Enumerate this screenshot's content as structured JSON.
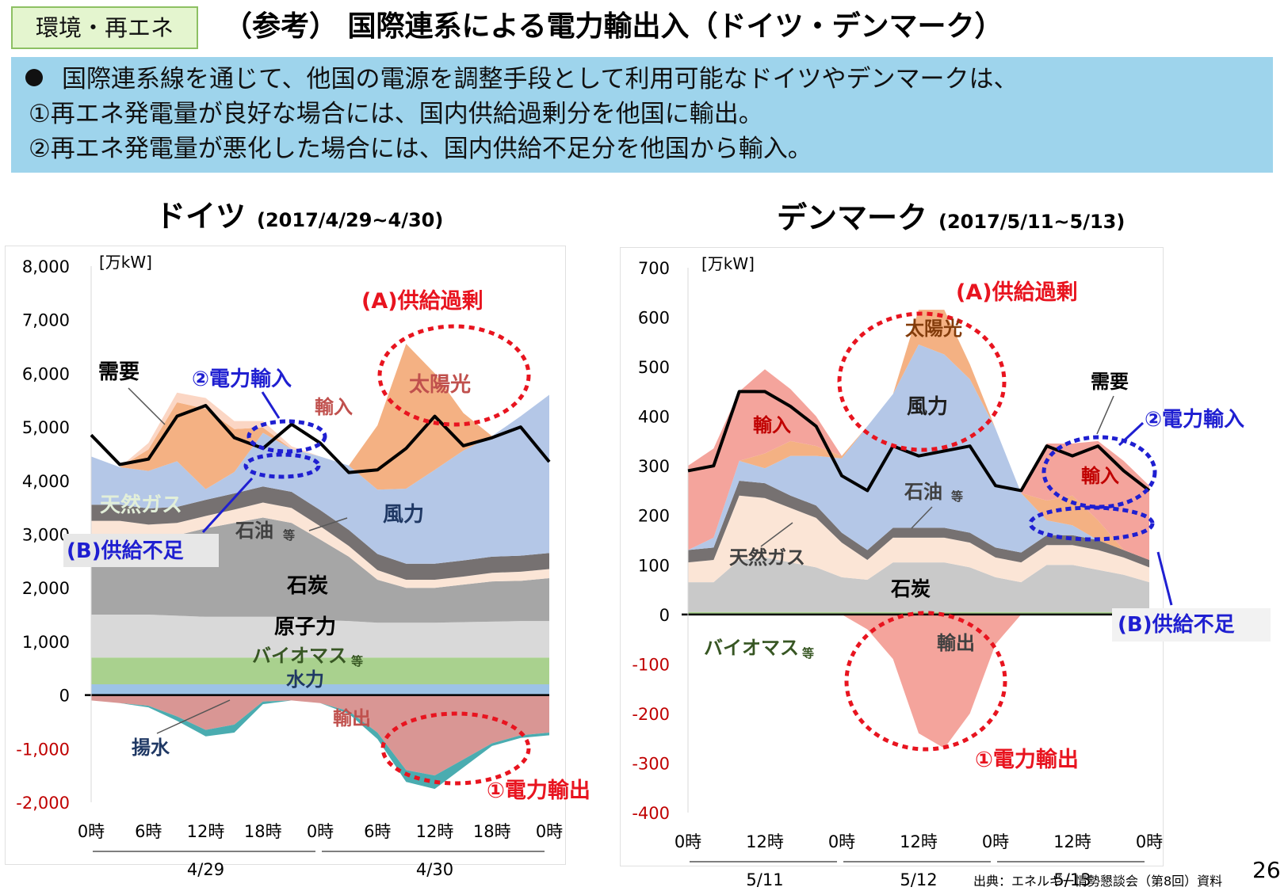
{
  "tag": "環境・再エネ",
  "title": "（参考） 国際連系による電力輸出入（ドイツ・デンマーク）",
  "summary": {
    "line1": "国際連系線を通じて、他国の電源を調整手段として利用可能なドイツやデンマークは、",
    "line2": "①再エネ発電量が良好な場合には、国内供給過剰分を他国に輸出。",
    "line3": "②再エネ発電量が悪化した場合には、国内供給不足分を他国から輸入。"
  },
  "chart_data": [
    {
      "type": "area",
      "title": "ドイツ",
      "subtitle": "(2017/4/29~4/30)",
      "ylabel": "[万kW]",
      "ylim": [
        -2000,
        8000
      ],
      "yticks": [
        "8,000",
        "7,000",
        "6,000",
        "5,000",
        "4,000",
        "3,000",
        "2,000",
        "1,000",
        "0",
        "-1,000",
        "-2,000"
      ],
      "xticks": [
        "0時",
        "6時",
        "12時",
        "18時",
        "0時",
        "6時",
        "12時",
        "18時",
        "0時"
      ],
      "date_labels": [
        "4/29",
        "4/30"
      ],
      "x": [
        0,
        3,
        6,
        9,
        12,
        15,
        18,
        21,
        24,
        27,
        30,
        33,
        36,
        39,
        42,
        45,
        48
      ],
      "series": [
        {
          "name": "水力",
          "color": "#9dc3e6",
          "values": [
            200,
            200,
            200,
            200,
            200,
            200,
            200,
            200,
            200,
            200,
            200,
            200,
            200,
            200,
            200,
            200,
            200
          ]
        },
        {
          "name": "バイオマス等",
          "color": "#a9d18e",
          "values": [
            500,
            500,
            500,
            500,
            500,
            500,
            500,
            500,
            500,
            500,
            500,
            500,
            500,
            500,
            500,
            500,
            500
          ]
        },
        {
          "name": "原子力",
          "color": "#d9d9d9",
          "values": [
            800,
            800,
            800,
            780,
            760,
            760,
            760,
            760,
            700,
            680,
            650,
            650,
            650,
            660,
            670,
            680,
            680
          ]
        },
        {
          "name": "石炭",
          "color": "#a6a6a6",
          "values": [
            1500,
            1500,
            1450,
            1500,
            1650,
            1750,
            1850,
            1750,
            1500,
            1200,
            800,
            650,
            650,
            700,
            750,
            750,
            800
          ]
        },
        {
          "name": "天然ガス",
          "color": "#fbe5d6",
          "values": [
            250,
            250,
            230,
            230,
            230,
            250,
            280,
            280,
            250,
            200,
            180,
            150,
            150,
            150,
            160,
            170,
            170
          ]
        },
        {
          "name": "石油等",
          "color": "#767171",
          "values": [
            300,
            300,
            300,
            300,
            300,
            300,
            300,
            300,
            300,
            300,
            300,
            300,
            300,
            300,
            300,
            300,
            300
          ]
        },
        {
          "name": "風力",
          "color": "#b4c7e7",
          "values": [
            900,
            700,
            700,
            850,
            200,
            400,
            1000,
            800,
            1000,
            1200,
            1200,
            1400,
            1750,
            2050,
            2250,
            2600,
            2950
          ]
        },
        {
          "name": "太陽光",
          "color": "#f4b183",
          "values": [
            0,
            0,
            400,
            1100,
            1500,
            800,
            100,
            0,
            0,
            0,
            1200,
            2700,
            1800,
            700,
            0,
            0,
            0
          ]
        },
        {
          "name": "輸入",
          "color": "#fbd6c4",
          "values": [
            0,
            0,
            120,
            180,
            200,
            150,
            120,
            50,
            0,
            0,
            0,
            0,
            0,
            0,
            0,
            0,
            0
          ]
        },
        {
          "name": "輸出",
          "color": "#d99694",
          "values": [
            -100,
            -150,
            -200,
            -400,
            -650,
            -550,
            -120,
            -100,
            -150,
            -300,
            -700,
            -1400,
            -1500,
            -1200,
            -900,
            -750,
            -700
          ]
        },
        {
          "name": "揚水",
          "color": "#4aacb0",
          "values": [
            0,
            0,
            -30,
            -80,
            -120,
            -150,
            -50,
            0,
            0,
            -50,
            -120,
            -220,
            -250,
            -150,
            -50,
            -50,
            -50
          ]
        }
      ],
      "demand": {
        "name": "需要",
        "values": [
          4850,
          4300,
          4400,
          5200,
          5400,
          4800,
          4600,
          5050,
          4700,
          4150,
          4200,
          4600,
          5200,
          4650,
          4800,
          5000,
          4350
        ]
      },
      "annotations": {
        "surplus": "(A)供給過剰",
        "shortage": "(B)供給不足",
        "import_note": "②電力輸入",
        "export_note": "①電力輸出",
        "solar": "太陽光",
        "demand": "需要",
        "import": "輸入",
        "wind": "風力",
        "gas": "天然ガス",
        "oil": "石油",
        "oil_suffix": "等",
        "coal": "石炭",
        "nuclear": "原子力",
        "biomass": "バイオマス",
        "biomass_suffix": "等",
        "hydro": "水力",
        "export": "輸出",
        "pumped": "揚水"
      }
    },
    {
      "type": "area",
      "title": "デンマーク",
      "subtitle": "(2017/5/11~5/13)",
      "ylabel": "[万kW]",
      "ylim": [
        -400,
        700
      ],
      "yticks": [
        "700",
        "600",
        "500",
        "400",
        "300",
        "200",
        "100",
        "0",
        "-100",
        "-200",
        "-300",
        "-400"
      ],
      "xticks": [
        "0時",
        "12時",
        "0時",
        "12時",
        "0時",
        "12時",
        "0時"
      ],
      "date_labels": [
        "5/11",
        "5/12",
        "5/13"
      ],
      "x": [
        0,
        4,
        8,
        12,
        16,
        20,
        24,
        28,
        32,
        36,
        40,
        44,
        48,
        52,
        56,
        60,
        64,
        68,
        72
      ],
      "series": [
        {
          "name": "バイオマス等",
          "color": "#a9d18e",
          "values": [
            5,
            5,
            5,
            5,
            5,
            5,
            5,
            5,
            5,
            5,
            5,
            5,
            5,
            5,
            5,
            5,
            5,
            5,
            5
          ]
        },
        {
          "name": "石炭",
          "color": "#c9c9c9",
          "values": [
            60,
            60,
            105,
            110,
            100,
            90,
            70,
            65,
            100,
            100,
            100,
            90,
            70,
            60,
            95,
            95,
            85,
            75,
            60
          ]
        },
        {
          "name": "天然ガス",
          "color": "#fbe5d6",
          "values": [
            40,
            45,
            130,
            120,
            110,
            100,
            70,
            40,
            50,
            50,
            50,
            50,
            40,
            40,
            40,
            40,
            40,
            35,
            30
          ]
        },
        {
          "name": "石油等",
          "color": "#767171",
          "values": [
            25,
            25,
            30,
            30,
            25,
            25,
            20,
            20,
            20,
            20,
            20,
            20,
            20,
            20,
            20,
            20,
            20,
            15,
            15
          ]
        },
        {
          "name": "風力",
          "color": "#b4c7e7",
          "values": [
            0,
            20,
            40,
            30,
            80,
            100,
            150,
            250,
            270,
            370,
            350,
            310,
            240,
            120,
            30,
            20,
            0,
            0,
            0
          ]
        },
        {
          "name": "太陽光",
          "color": "#f4b183",
          "values": [
            0,
            0,
            0,
            30,
            30,
            20,
            5,
            0,
            0,
            70,
            90,
            30,
            0,
            0,
            40,
            60,
            40,
            0,
            0
          ]
        },
        {
          "name": "輸入",
          "color": "#f4a49c",
          "values": [
            170,
            180,
            140,
            170,
            105,
            60,
            0,
            0,
            0,
            0,
            0,
            0,
            0,
            0,
            115,
            105,
            160,
            180,
            150
          ]
        },
        {
          "name": "輸出",
          "color": "#f4a49c",
          "values": [
            0,
            0,
            0,
            0,
            0,
            0,
            0,
            -30,
            -90,
            -240,
            -270,
            -200,
            -60,
            0,
            0,
            0,
            0,
            0,
            0
          ]
        }
      ],
      "demand": {
        "name": "需要",
        "values": [
          290,
          300,
          450,
          450,
          420,
          380,
          280,
          250,
          340,
          320,
          330,
          340,
          260,
          250,
          340,
          320,
          340,
          290,
          250
        ]
      },
      "annotations": {
        "surplus": "(A)供給過剰",
        "shortage": "(B)供給不足",
        "import_note": "②電力輸入",
        "export_note": "①電力輸出",
        "solar": "太陽光",
        "wind": "風力",
        "import_left": "輸入",
        "import_right": "輸入",
        "demand": "需要",
        "oil": "石油",
        "oil_suffix": "等",
        "gas": "天然ガス",
        "coal": "石炭",
        "biomass": "バイオマス",
        "biomass_suffix": "等",
        "export": "輸出"
      }
    }
  ],
  "footer": {
    "source": "出典：エネルギー情勢懇談会（第8回）資料",
    "page": "26"
  }
}
